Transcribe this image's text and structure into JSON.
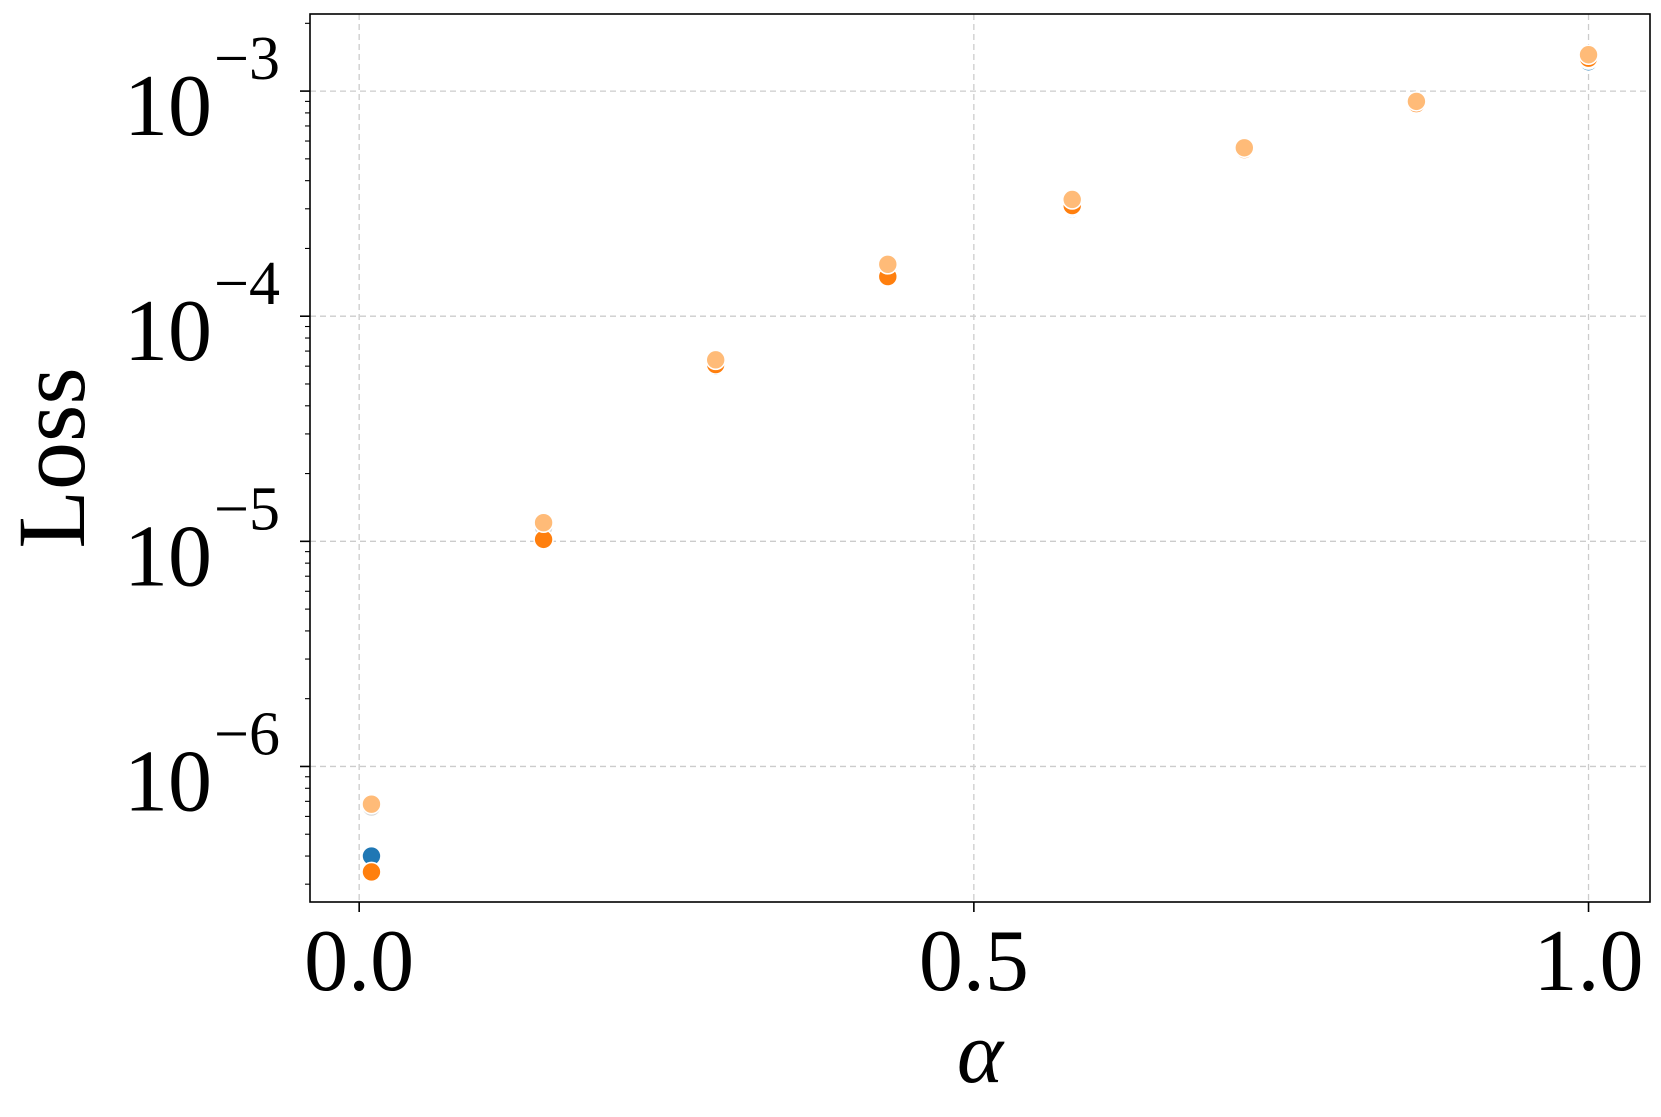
{
  "chart_data": {
    "type": "scatter",
    "xlabel": "α",
    "ylabel": "Loss",
    "xlim": [
      -0.04,
      1.05
    ],
    "ylim": [
      2.5e-07,
      0.0022
    ],
    "yscale": "log",
    "grid": true,
    "x_ticks": [
      {
        "value": 0.0,
        "label": "0.0"
      },
      {
        "value": 0.5,
        "label": "0.5"
      },
      {
        "value": 1.0,
        "label": "1.0"
      }
    ],
    "y_ticks": [
      {
        "value": 1e-06,
        "base": "10",
        "exp": "−6"
      },
      {
        "value": 1e-05,
        "base": "10",
        "exp": "−5"
      },
      {
        "value": 0.0001,
        "base": "10",
        "exp": "−4"
      },
      {
        "value": 0.001,
        "base": "10",
        "exp": "−3"
      }
    ],
    "series": [
      {
        "color": "#1f77b4",
        "x": [
          0.01,
          0.15,
          0.29,
          0.43,
          0.58,
          0.72,
          0.86,
          1.0
        ],
        "y": [
          4e-07,
          1.03e-05,
          6e-05,
          0.00015,
          0.0003,
          0.00054,
          0.00088,
          0.00135
        ]
      },
      {
        "color": "#d8d8d8",
        "x": [
          0.01,
          0.15,
          0.29,
          0.43,
          0.58,
          0.72,
          0.86,
          1.0
        ],
        "y": [
          6.6e-07,
          1.15e-05,
          6.2e-05,
          0.00016,
          0.000305,
          0.000545,
          0.00088,
          0.00138
        ]
      },
      {
        "color": "#ff7f0e",
        "x": [
          0.01,
          0.15,
          0.29,
          0.43,
          0.58,
          0.72,
          0.86,
          1.0
        ],
        "y": [
          3.4e-07,
          1.02e-05,
          6.1e-05,
          0.00015,
          0.00031,
          0.00055,
          0.00088,
          0.0014
        ]
      },
      {
        "color": "#ffbb78",
        "x": [
          0.01,
          0.15,
          0.29,
          0.43,
          0.58,
          0.72,
          0.86,
          1.0
        ],
        "y": [
          6.8e-07,
          1.21e-05,
          6.4e-05,
          0.00017,
          0.00033,
          0.00056,
          0.0009,
          0.00145
        ]
      }
    ]
  }
}
